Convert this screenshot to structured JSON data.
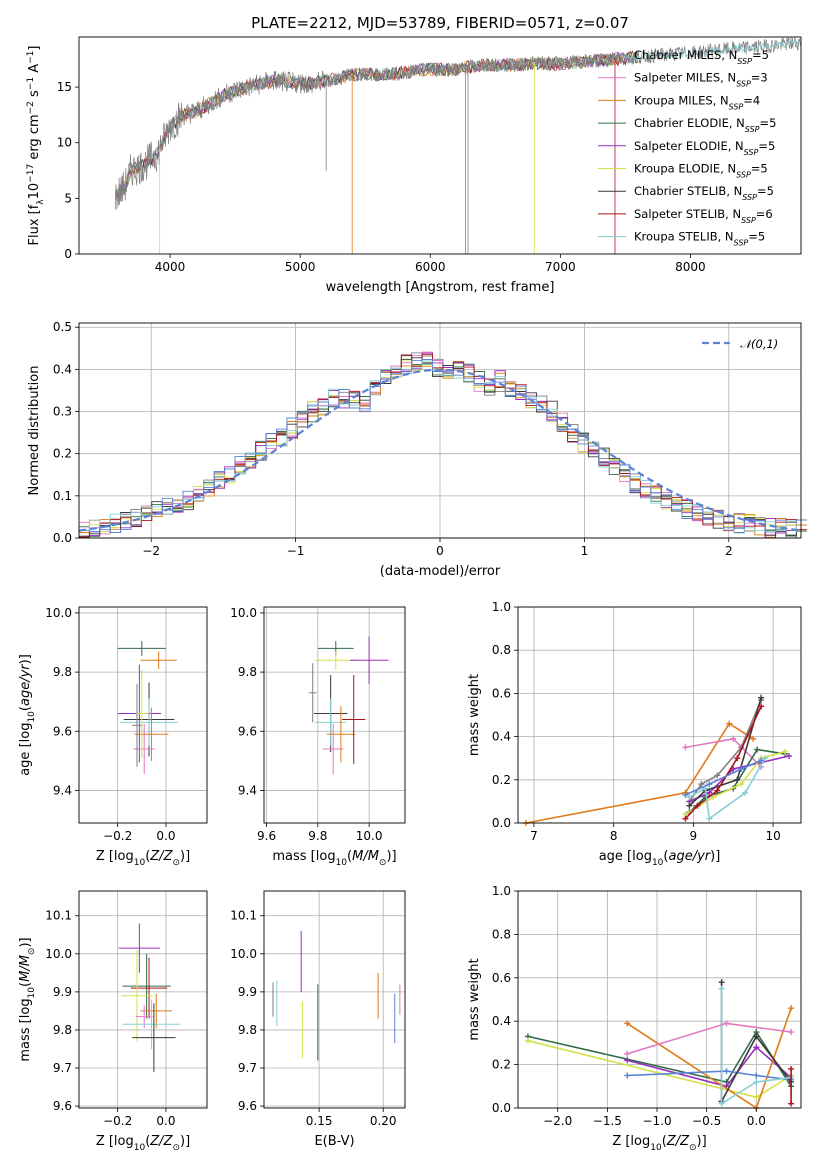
{
  "figure": {
    "title": "PLATE=2212, MJD=53789, FIBERID=0571, z=0.07"
  },
  "series_styles": [
    {
      "name": "Chabrier MILES",
      "nssp": "5",
      "color": "#808080"
    },
    {
      "name": "Salpeter MILES",
      "nssp": "3",
      "color": "#e377c2"
    },
    {
      "name": "Kroupa MILES",
      "nssp": "4",
      "color": "#e07b18"
    },
    {
      "name": "Chabrier ELODIE",
      "nssp": "5",
      "color": "#2f6d4a"
    },
    {
      "name": "Salpeter ELODIE",
      "nssp": "5",
      "color": "#9a2fbf"
    },
    {
      "name": "Kroupa ELODIE",
      "nssp": "5",
      "color": "#d4e04a"
    },
    {
      "name": "Chabrier STELIB",
      "nssp": "5",
      "color": "#3a3a3a"
    },
    {
      "name": "Salpeter STELIB",
      "nssp": "6",
      "color": "#b0101a"
    },
    {
      "name": "Kroupa STELIB",
      "nssp": "5",
      "color": "#86d0d6"
    }
  ],
  "chart_data": [
    {
      "id": "spectrum",
      "type": "line",
      "xlabel": "wavelength [Angstrom, rest frame]",
      "ylabel": "Flux [f_λ 10^-17 erg cm^-2 s^-1 A^-1]",
      "xlim": [
        3300,
        8850
      ],
      "ylim": [
        0,
        19.5
      ],
      "xticks": [
        4000,
        5000,
        6000,
        7000,
        8000
      ],
      "yticks": [
        0,
        5,
        10,
        15
      ],
      "grid": false,
      "legend": "right",
      "observed_flux_nodes": {
        "x": [
          3580,
          3650,
          3700,
          3800,
          3900,
          4000,
          4100,
          4200,
          4300,
          4400,
          4500,
          4600,
          4700,
          4800,
          4900,
          5000,
          5100,
          5200,
          5300,
          5400,
          5500,
          5600,
          5700,
          5800,
          5900,
          6000,
          6100,
          6200,
          6300,
          6400,
          6500,
          6600,
          6700,
          6800,
          6900,
          7000,
          7200,
          7400,
          7600,
          7800,
          8000,
          8200,
          8400,
          8600,
          8850
        ],
        "y": [
          5.2,
          6.0,
          7.5,
          8.0,
          9.0,
          11.5,
          12.5,
          12.8,
          13.5,
          14.2,
          14.7,
          15.0,
          15.3,
          15.6,
          15.4,
          15.4,
          15.3,
          15.6,
          15.8,
          16.1,
          16.2,
          16.1,
          16.2,
          16.3,
          16.5,
          16.6,
          16.6,
          16.6,
          16.8,
          17.0,
          16.9,
          17.0,
          17.0,
          17.2,
          17.1,
          17.1,
          17.3,
          17.5,
          17.7,
          17.9,
          18.1,
          18.3,
          18.5,
          18.7,
          19.0
        ]
      },
      "spike_lines": [
        {
          "x": 3920,
          "y_bottom": 0.0,
          "series": "Kroupa ELODIE"
        },
        {
          "x": 5200,
          "y_bottom": 7.5,
          "series": "Chabrier MILES"
        },
        {
          "x": 5400,
          "y_bottom": 0.0,
          "series": "Kroupa MILES"
        },
        {
          "x": 6270,
          "y_bottom": 0.0,
          "series": "Chabrier MILES"
        },
        {
          "x": 6290,
          "y_bottom": 0.0,
          "series": "Chabrier MILES"
        },
        {
          "x": 6800,
          "y_bottom": 0.0,
          "series": "Kroupa ELODIE"
        },
        {
          "x": 7420,
          "y_bottom": 0.0,
          "series": "Salpeter STELIB"
        }
      ]
    },
    {
      "id": "residuals",
      "type": "bar",
      "xlabel": "(data-model)/error",
      "ylabel": "Normed distribution",
      "xlim": [
        -2.5,
        2.5
      ],
      "ylim": [
        0,
        0.51
      ],
      "xticks": [
        -2,
        -1,
        0,
        1,
        2
      ],
      "yticks": [
        0,
        0.1,
        0.2,
        0.3,
        0.4,
        0.5
      ],
      "grid": true,
      "legend": "top-right",
      "normal_curve_label": "𝒩(0,1)",
      "bin_edges_start": -2.5,
      "bin_width": 0.1,
      "histogram_heights": [
        0.018,
        0.022,
        0.03,
        0.036,
        0.042,
        0.05,
        0.056,
        0.062,
        0.072,
        0.085,
        0.092,
        0.104,
        0.122,
        0.142,
        0.155,
        0.172,
        0.19,
        0.205,
        0.226,
        0.24,
        0.262,
        0.28,
        0.3,
        0.312,
        0.33,
        0.332,
        0.328,
        0.32,
        0.355,
        0.375,
        0.39,
        0.41,
        0.422,
        0.43,
        0.402,
        0.404,
        0.398,
        0.39,
        0.372,
        0.36,
        0.372,
        0.352,
        0.345,
        0.33,
        0.32,
        0.3,
        0.272,
        0.248,
        0.226,
        0.212,
        0.19,
        0.17,
        0.15,
        0.131,
        0.12,
        0.101,
        0.09,
        0.08,
        0.07,
        0.06,
        0.052,
        0.045,
        0.04,
        0.036,
        0.032,
        0.028,
        0.024,
        0.022,
        0.02,
        0.018
      ]
    },
    {
      "id": "age-vs-Z",
      "type": "scatter",
      "xlabel": "Z [log10(Z/Z⊙)]",
      "ylabel": "age  [log10(age/yr)]",
      "xlim": [
        -0.36,
        0.17
      ],
      "ylim": [
        9.29,
        10.02
      ],
      "xticks": [
        -0.2,
        0.0
      ],
      "yticks": [
        9.4,
        9.6,
        9.8,
        10.0
      ],
      "grid": true,
      "points": [
        {
          "x": -0.1,
          "y": 9.88,
          "ex": 0.2,
          "ey": 0.05,
          "series": "Chabrier ELODIE"
        },
        {
          "x": -0.03,
          "y": 9.84,
          "ex": 0.15,
          "ey": 0.06,
          "series": "Kroupa MILES"
        },
        {
          "x": -0.11,
          "y": 9.66,
          "ex": 0.18,
          "ey": 0.33,
          "series": "Salpeter ELODIE"
        },
        {
          "x": -0.07,
          "y": 9.64,
          "ex": 0.21,
          "ey": 0.25,
          "series": "Chabrier STELIB"
        },
        {
          "x": -0.07,
          "y": 9.63,
          "ex": 0.24,
          "ey": 0.16,
          "series": "Kroupa STELIB"
        },
        {
          "x": -0.06,
          "y": 9.59,
          "ex": 0.14,
          "ey": 0.18,
          "series": "Kroupa MILES"
        },
        {
          "x": -0.09,
          "y": 9.54,
          "ex": 0.09,
          "ey": 0.17,
          "series": "Salpeter MILES"
        },
        {
          "x": -0.1,
          "y": 9.66,
          "ex": 0.05,
          "ey": 0.3,
          "series": "Kroupa ELODIE"
        },
        {
          "x": -0.12,
          "y": 9.62,
          "ex": 0.04,
          "ey": 0.28,
          "series": "Chabrier MILES"
        }
      ]
    },
    {
      "id": "age-vs-mass",
      "type": "scatter",
      "xlabel": "mass [log10(M/M⊙)]",
      "ylabel": "",
      "xlim": [
        9.59,
        10.14
      ],
      "ylim": [
        9.29,
        10.02
      ],
      "xticks": [
        9.6,
        9.8,
        10.0
      ],
      "yticks": [
        9.4,
        9.6,
        9.8,
        10.0
      ],
      "grid": true,
      "points": [
        {
          "x": 9.87,
          "y": 9.88,
          "ex": 0.14,
          "ey": 0.05,
          "series": "Chabrier ELODIE"
        },
        {
          "x": 9.87,
          "y": 9.84,
          "ex": 0.16,
          "ey": 0.06,
          "series": "Kroupa ELODIE"
        },
        {
          "x": 10.0,
          "y": 9.84,
          "ex": 0.15,
          "ey": 0.16,
          "series": "Salpeter ELODIE"
        },
        {
          "x": 9.85,
          "y": 9.66,
          "ex": 0.13,
          "ey": 0.26,
          "series": "Chabrier STELIB"
        },
        {
          "x": 9.85,
          "y": 9.63,
          "ex": 0.12,
          "ey": 0.16,
          "series": "Kroupa STELIB"
        },
        {
          "x": 9.89,
          "y": 9.59,
          "ex": 0.11,
          "ey": 0.19,
          "series": "Kroupa MILES"
        },
        {
          "x": 9.86,
          "y": 9.54,
          "ex": 0.08,
          "ey": 0.17,
          "series": "Salpeter MILES"
        },
        {
          "x": 9.94,
          "y": 9.64,
          "ex": 0.09,
          "ey": 0.3,
          "series": "Salpeter STELIB"
        },
        {
          "x": 9.78,
          "y": 9.73,
          "ex": 0.03,
          "ey": 0.2,
          "series": "Chabrier MILES"
        }
      ]
    },
    {
      "id": "weight-vs-age",
      "type": "line",
      "xlabel": "age  [log10(age/yr)]",
      "ylabel": "mass weight",
      "xlim": [
        6.8,
        10.35
      ],
      "ylim": [
        0,
        1.0
      ],
      "xticks": [
        7,
        8,
        9,
        10
      ],
      "yticks": [
        0.0,
        0.2,
        0.4,
        0.6,
        0.8,
        1.0
      ],
      "grid": true,
      "lines": [
        {
          "series": "Kroupa MILES",
          "x": [
            6.9,
            8.9,
            9.45,
            9.75
          ],
          "y": [
            0.0,
            0.14,
            0.46,
            0.39
          ]
        },
        {
          "series": "Salpeter MILES",
          "x": [
            8.9,
            9.5,
            9.85
          ],
          "y": [
            0.35,
            0.39,
            0.26
          ]
        },
        {
          "series": "Chabrier MILES",
          "x": [
            8.95,
            9.1,
            9.3,
            9.6,
            9.85
          ],
          "y": [
            0.1,
            0.18,
            0.22,
            0.35,
            0.57
          ]
        },
        {
          "series": "Chabrier ELODIE",
          "x": [
            8.95,
            9.15,
            9.5,
            9.8,
            10.15
          ],
          "y": [
            0.05,
            0.12,
            0.16,
            0.34,
            0.32
          ]
        },
        {
          "series": "Salpeter ELODIE",
          "x": [
            8.95,
            9.2,
            9.5,
            9.85,
            10.2
          ],
          "y": [
            0.1,
            0.14,
            0.25,
            0.28,
            0.31
          ]
        },
        {
          "series": "Kroupa ELODIE",
          "x": [
            8.9,
            9.25,
            9.6,
            9.85,
            10.15
          ],
          "y": [
            0.04,
            0.12,
            0.18,
            0.3,
            0.33
          ]
        },
        {
          "series": "Chabrier STELIB",
          "x": [
            8.95,
            9.15,
            9.55,
            9.85
          ],
          "y": [
            0.08,
            0.15,
            0.2,
            0.58
          ]
        },
        {
          "series": "Salpeter STELIB",
          "x": [
            8.9,
            9.05,
            9.3,
            9.55,
            9.85
          ],
          "y": [
            0.02,
            0.08,
            0.15,
            0.3,
            0.54
          ]
        },
        {
          "series": "Kroupa STELIB",
          "x": [
            8.95,
            9.15,
            9.2,
            9.65,
            9.9
          ],
          "y": [
            0.12,
            0.16,
            0.02,
            0.14,
            0.3
          ]
        },
        {
          "series": "Cornflower",
          "x": [
            8.9,
            9.2,
            9.6,
            9.85
          ],
          "y": [
            0.13,
            0.18,
            0.25,
            0.29
          ]
        }
      ]
    },
    {
      "id": "mass-vs-Z",
      "type": "scatter",
      "xlabel": "Z [log10(Z/Z⊙)]",
      "ylabel": "mass [log10(M/M⊙)]",
      "xlim": [
        -0.36,
        0.17
      ],
      "ylim": [
        9.595,
        10.165
      ],
      "xticks": [
        -0.2,
        0.0
      ],
      "yticks": [
        9.6,
        9.7,
        9.8,
        9.9,
        10.0,
        10.1
      ],
      "grid": true,
      "points": [
        {
          "x": -0.11,
          "y": 10.015,
          "ex": 0.17,
          "ey": 0.13,
          "series": "Salpeter ELODIE"
        },
        {
          "x": -0.08,
          "y": 9.915,
          "ex": 0.2,
          "ey": 0.17,
          "series": "Chabrier ELODIE"
        },
        {
          "x": -0.07,
          "y": 9.91,
          "ex": 0.15,
          "ey": 0.16,
          "series": "Salpeter STELIB"
        },
        {
          "x": -0.12,
          "y": 9.89,
          "ex": 0.13,
          "ey": 0.24,
          "series": "Kroupa ELODIE"
        },
        {
          "x": -0.04,
          "y": 9.85,
          "ex": 0.13,
          "ey": 0.09,
          "series": "Kroupa MILES"
        },
        {
          "x": -0.09,
          "y": 9.835,
          "ex": 0.07,
          "ey": 0.06,
          "series": "Salpeter MILES"
        },
        {
          "x": -0.06,
          "y": 9.815,
          "ex": 0.24,
          "ey": 0.13,
          "series": "Kroupa STELIB"
        },
        {
          "x": -0.05,
          "y": 9.78,
          "ex": 0.18,
          "ey": 0.18,
          "series": "Chabrier STELIB"
        }
      ]
    },
    {
      "id": "mass-vs-EBV",
      "type": "scatter",
      "xlabel": "E(B-V)",
      "ylabel": "",
      "xlim": [
        0.107,
        0.217
      ],
      "ylim": [
        9.595,
        10.165
      ],
      "xticks": [
        0.15,
        0.2
      ],
      "yticks": [
        9.6,
        9.7,
        9.8,
        9.9,
        10.0,
        10.1
      ],
      "grid": true,
      "points": [
        {
          "x": 0.114,
          "y": 9.88,
          "ey": 0.09,
          "series": "Chabrier MILES"
        },
        {
          "x": 0.117,
          "y": 9.87,
          "ey": 0.12,
          "series": "Kroupa STELIB"
        },
        {
          "x": 0.136,
          "y": 9.98,
          "ey": 0.16,
          "series": "Salpeter ELODIE"
        },
        {
          "x": 0.137,
          "y": 9.8,
          "ey": 0.15,
          "series": "Kroupa ELODIE"
        },
        {
          "x": 0.149,
          "y": 9.82,
          "ey": 0.2,
          "series": "Chabrier ELODIE"
        },
        {
          "x": 0.196,
          "y": 9.89,
          "ey": 0.12,
          "series": "Kroupa MILES"
        },
        {
          "x": 0.209,
          "y": 9.83,
          "ey": 0.13,
          "series": "Cornflower"
        },
        {
          "x": 0.213,
          "y": 9.88,
          "ey": 0.08,
          "series": "Salpeter MILES"
        }
      ]
    },
    {
      "id": "weight-vs-Z",
      "type": "line",
      "xlabel": "Z [log10(Z/Z⊙)]",
      "ylabel": "mass weight",
      "xlim": [
        -2.4,
        0.45
      ],
      "ylim": [
        0,
        1.0
      ],
      "xticks": [
        -2.0,
        -1.5,
        -1.0,
        -0.5,
        0.0
      ],
      "yticks": [
        0.0,
        0.2,
        0.4,
        0.6,
        0.8,
        1.0
      ],
      "grid": true,
      "lines": [
        {
          "series": "Chabrier ELODIE",
          "x": [
            -2.3,
            -0.3,
            0.0,
            0.35
          ],
          "y": [
            0.33,
            0.12,
            0.35,
            0.1
          ]
        },
        {
          "series": "Kroupa ELODIE",
          "x": [
            -2.3,
            0.0,
            0.35
          ],
          "y": [
            0.31,
            0.05,
            0.15
          ]
        },
        {
          "series": "Salpeter ELODIE",
          "x": [
            -1.3,
            -0.3,
            0.0,
            0.35
          ],
          "y": [
            0.22,
            0.1,
            0.28,
            0.14
          ]
        },
        {
          "series": "Kroupa MILES",
          "x": [
            -1.3,
            0.0,
            0.35
          ],
          "y": [
            0.39,
            0.0,
            0.46
          ]
        },
        {
          "series": "Salpeter MILES",
          "x": [
            -1.3,
            -0.3,
            0.35
          ],
          "y": [
            0.25,
            0.39,
            0.35
          ]
        },
        {
          "series": "Cornflower",
          "x": [
            -1.3,
            -0.3,
            0.0,
            0.35
          ],
          "y": [
            0.15,
            0.17,
            0.15,
            0.13
          ]
        },
        {
          "series": "Chabrier STELIB",
          "x": [
            -0.35,
            -0.35,
            0.0,
            0.35
          ],
          "y": [
            0.58,
            0.03,
            0.33,
            0.12
          ]
        },
        {
          "series": "Kroupa STELIB",
          "x": [
            -0.35,
            -0.35,
            0.0,
            0.35
          ],
          "y": [
            0.55,
            0.02,
            0.12,
            0.14
          ]
        },
        {
          "series": "Salpeter STELIB",
          "x": [
            0.35,
            0.35
          ],
          "y": [
            0.02,
            0.18
          ]
        }
      ]
    }
  ],
  "extra_colors": {
    "Cornflower": "#5b84d6"
  }
}
